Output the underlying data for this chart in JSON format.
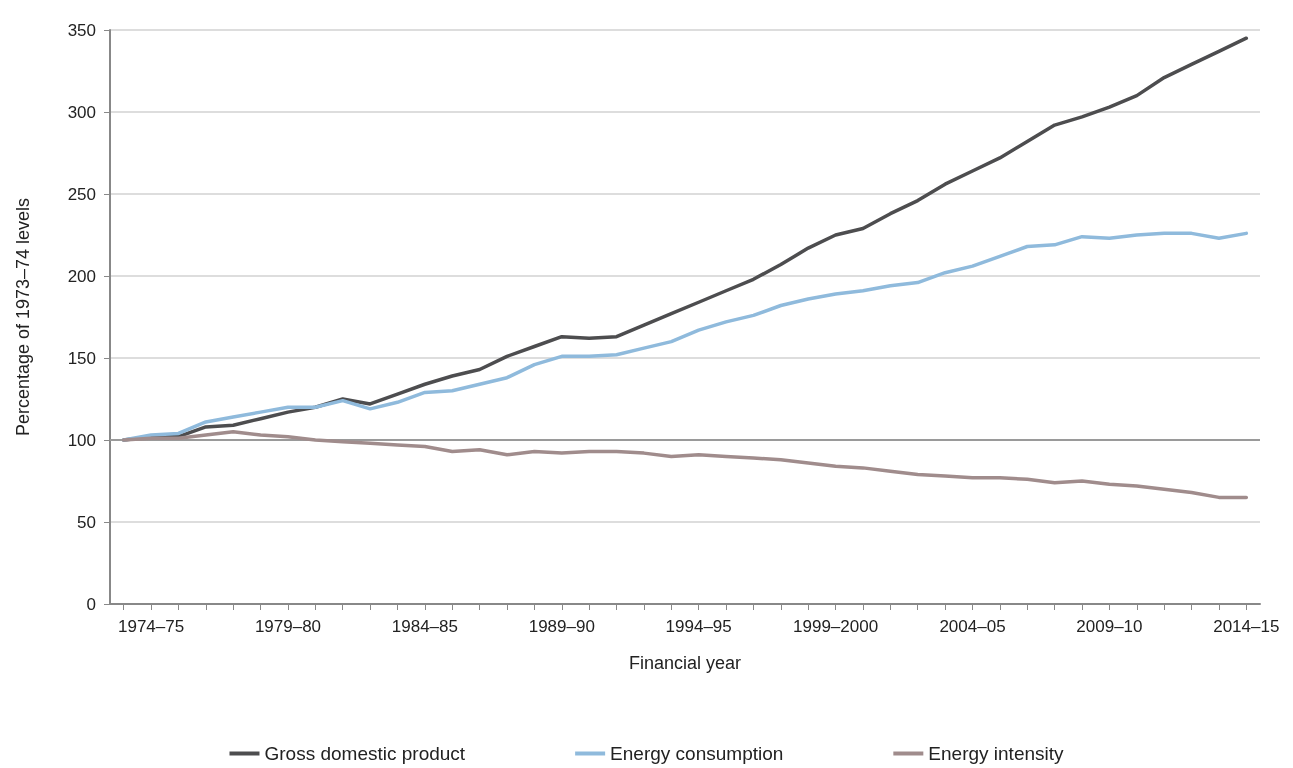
{
  "chart_data": {
    "type": "line",
    "xlabel": "Financial year",
    "ylabel": "Percentage of 1973–74 levels",
    "categories": [
      null,
      "1974–75",
      null,
      null,
      null,
      null,
      "1979–80",
      null,
      null,
      null,
      null,
      "1984–85",
      null,
      null,
      null,
      null,
      "1989–90",
      null,
      null,
      null,
      null,
      "1994–95",
      null,
      null,
      null,
      null,
      "1999–2000",
      null,
      null,
      null,
      null,
      "2004–05",
      null,
      null,
      null,
      null,
      "2009–10",
      null,
      null,
      null,
      null,
      "2014–15"
    ],
    "series": [
      {
        "name": "Gross domestic product",
        "color": "#4d4d4f",
        "values": [
          100,
          102,
          102,
          108,
          109,
          113,
          117,
          120,
          125,
          122,
          128,
          134,
          139,
          143,
          151,
          157,
          163,
          162,
          163,
          170,
          177,
          184,
          191,
          198,
          207,
          217,
          225,
          229,
          238,
          246,
          256,
          264,
          272,
          282,
          292,
          297,
          303,
          310,
          321,
          329,
          337,
          345
        ]
      },
      {
        "name": "Energy consumption",
        "color": "#8fbadc",
        "values": [
          100,
          103,
          104,
          111,
          114,
          117,
          120,
          120,
          124,
          119,
          123,
          129,
          130,
          134,
          138,
          146,
          151,
          151,
          152,
          156,
          160,
          167,
          172,
          176,
          182,
          186,
          189,
          191,
          194,
          196,
          202,
          206,
          212,
          218,
          219,
          224,
          223,
          225,
          226,
          226,
          223,
          226
        ]
      },
      {
        "name": "Energy intensity",
        "color": "#a08c8c",
        "values": [
          100,
          101,
          101,
          103,
          105,
          103,
          102,
          100,
          99,
          98,
          97,
          96,
          93,
          94,
          91,
          93,
          92,
          93,
          93,
          92,
          90,
          91,
          90,
          89,
          88,
          86,
          84,
          83,
          81,
          79,
          78,
          77,
          77,
          76,
          74,
          75,
          73,
          72,
          70,
          68,
          65,
          65
        ]
      }
    ],
    "ylim": [
      0,
      350
    ],
    "yticks": [
      0,
      50,
      100,
      150,
      200,
      250,
      300,
      350
    ],
    "ref_lines": [
      {
        "axis": "y",
        "value": 100,
        "color": "#9a9a9a"
      }
    ],
    "grid": "y",
    "legend": "bottom",
    "marker": "none",
    "line_style": "solid"
  }
}
